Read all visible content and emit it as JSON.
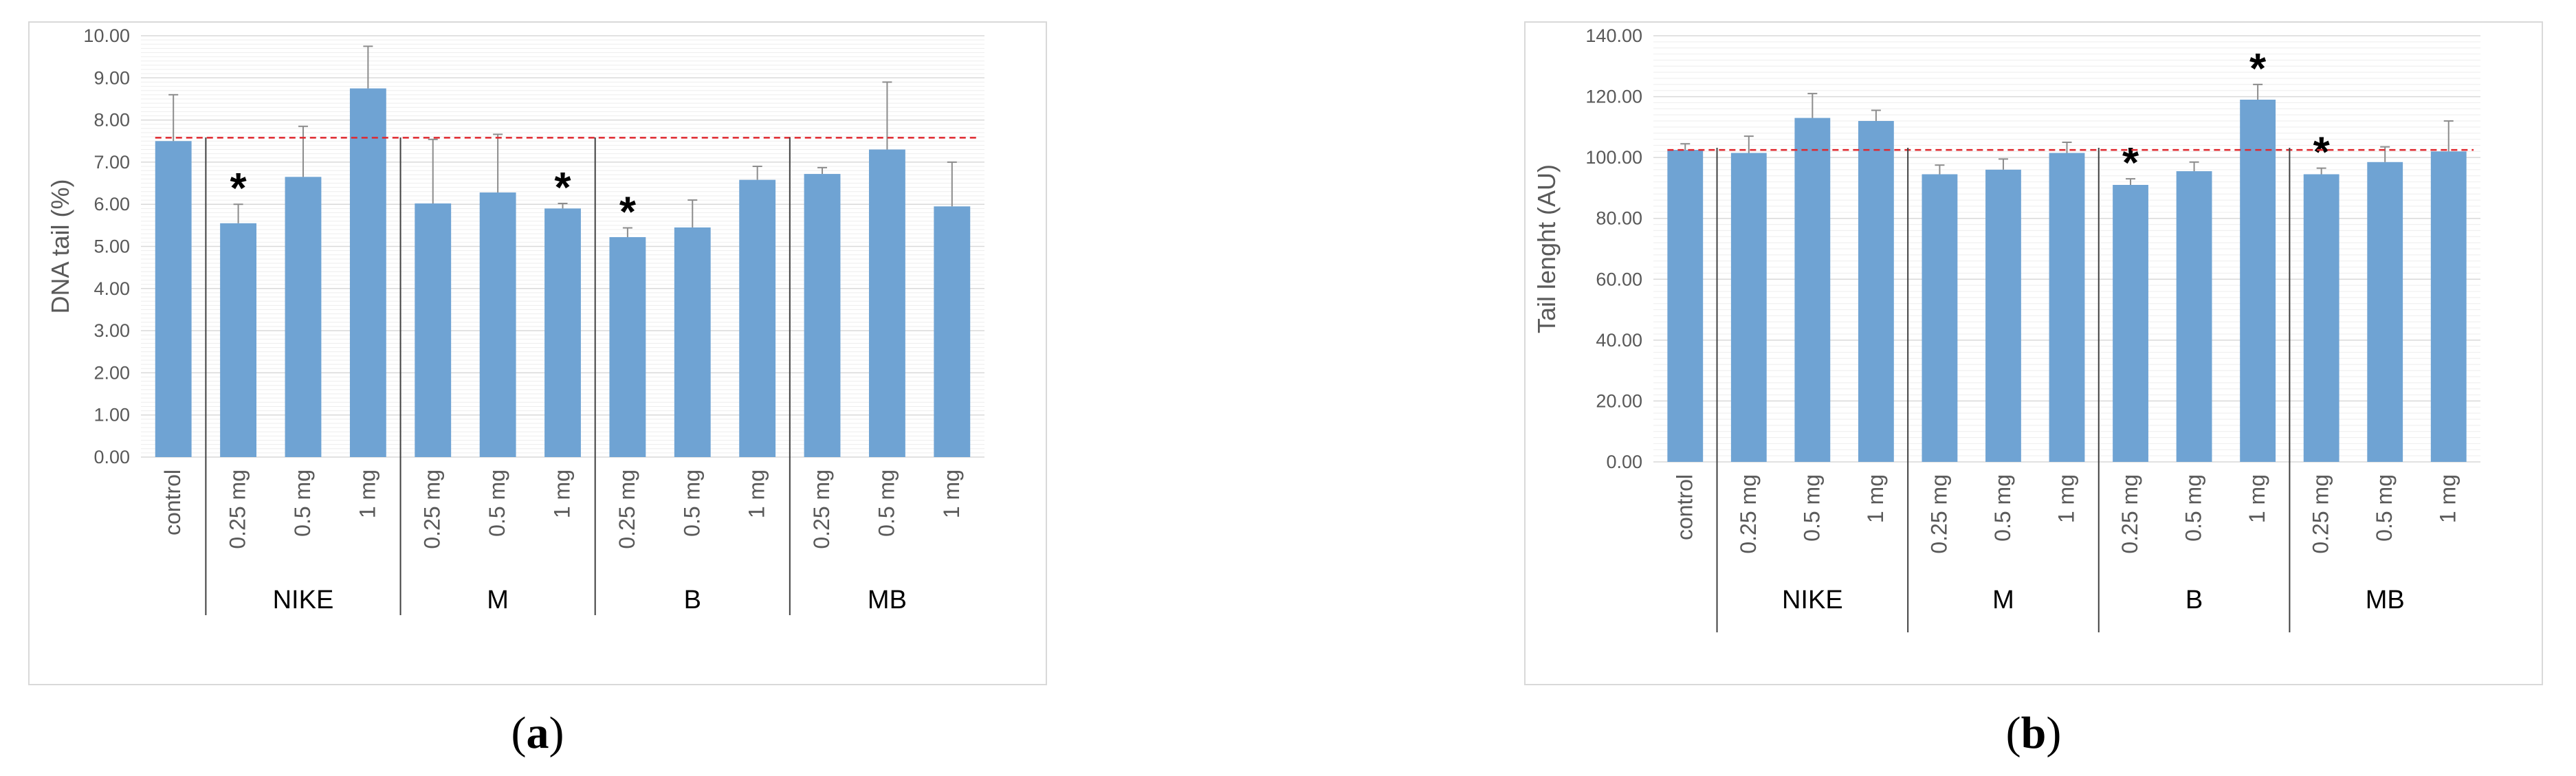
{
  "figure": {
    "panels": [
      {
        "label_open": "(",
        "label_letter": "a",
        "label_close": ")"
      },
      {
        "label_open": "(",
        "label_letter": "b",
        "label_close": ")"
      }
    ]
  },
  "colors": {
    "bar": "#6fa3d3",
    "reference_line": "#e0282e",
    "grid": "#d9d9d9",
    "axis_text": "#595959",
    "frame": "#d9d9d9"
  },
  "chart_data": [
    {
      "type": "bar",
      "title": "",
      "xlabel": "",
      "ylabel": "DNA tail (%)",
      "ylim": [
        0,
        10
      ],
      "ytick_step": 1,
      "ytick_labels": [
        "0.00",
        "1.00",
        "2.00",
        "3.00",
        "4.00",
        "5.00",
        "6.00",
        "7.00",
        "8.00",
        "9.00",
        "10.00"
      ],
      "grid": true,
      "categories": [
        "control",
        "0.25 mg",
        "0.5 mg",
        "1 mg",
        "0.25 mg",
        "0.5 mg",
        "1 mg",
        "0.25 mg",
        "0.5 mg",
        "1 mg",
        "0.25 mg",
        "0.5 mg",
        "1 mg"
      ],
      "groups": [
        {
          "name": "NIKE",
          "start": 1,
          "end": 3
        },
        {
          "name": "M",
          "start": 4,
          "end": 6
        },
        {
          "name": "B",
          "start": 7,
          "end": 9
        },
        {
          "name": "MB",
          "start": 10,
          "end": 12
        }
      ],
      "values": [
        7.5,
        5.55,
        6.65,
        8.75,
        6.02,
        6.28,
        5.9,
        5.22,
        5.45,
        6.58,
        6.72,
        7.3,
        5.95
      ],
      "errors": [
        1.1,
        0.45,
        1.2,
        1.0,
        1.52,
        1.38,
        0.12,
        0.22,
        0.65,
        0.32,
        0.15,
        1.6,
        1.05
      ],
      "significant": [
        false,
        true,
        false,
        false,
        false,
        false,
        true,
        true,
        false,
        false,
        false,
        false,
        false
      ],
      "significance_marker": "*",
      "reference_line": 7.58
    },
    {
      "type": "bar",
      "title": "",
      "xlabel": "",
      "ylabel": "Tail lenght  (AU)",
      "ylim": [
        0,
        140
      ],
      "ytick_step": 20,
      "ytick_labels": [
        "0.00",
        "20.00",
        "40.00",
        "60.00",
        "80.00",
        "100.00",
        "120.00",
        "140.00"
      ],
      "grid": true,
      "categories": [
        "control",
        "0.25 mg",
        "0.5 mg",
        "1 mg",
        "0.25 mg",
        "0.5 mg",
        "1 mg",
        "0.25 mg",
        "0.5 mg",
        "1 mg",
        "0.25 mg",
        "0.5 mg",
        "1 mg"
      ],
      "groups": [
        {
          "name": "NIKE",
          "start": 1,
          "end": 3
        },
        {
          "name": "M",
          "start": 4,
          "end": 6
        },
        {
          "name": "B",
          "start": 7,
          "end": 9
        },
        {
          "name": "MB",
          "start": 10,
          "end": 12
        }
      ],
      "values": [
        102.5,
        101.5,
        113.0,
        112.0,
        94.5,
        96.0,
        101.5,
        91.0,
        95.5,
        119.0,
        94.5,
        98.5,
        102.0
      ],
      "errors": [
        2.0,
        5.5,
        8.0,
        3.5,
        3.0,
        3.5,
        3.5,
        2.0,
        3.0,
        5.0,
        2.0,
        5.0,
        10.0
      ],
      "significant": [
        false,
        false,
        false,
        false,
        false,
        false,
        false,
        true,
        false,
        true,
        true,
        false,
        false
      ],
      "significance_marker": "*",
      "reference_line": 102.5
    }
  ]
}
